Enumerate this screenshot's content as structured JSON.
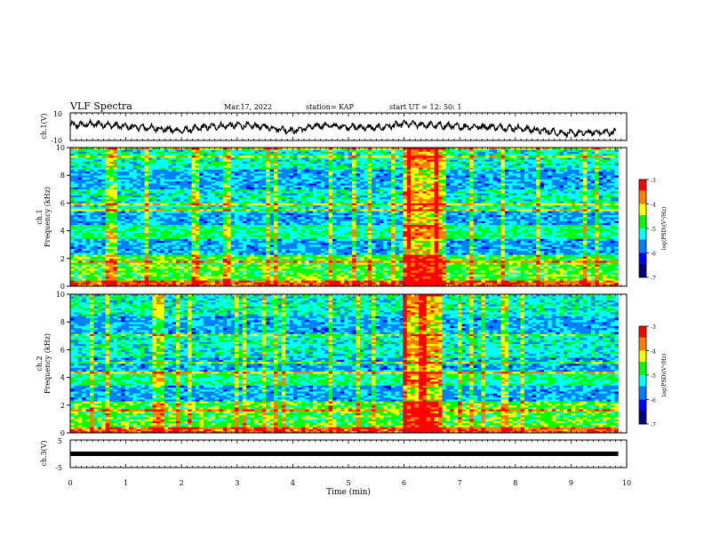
{
  "header": {
    "title": "VLF Spectra",
    "date": "Mar.17, 2022",
    "station": "station= KAP",
    "start": "start  UT =  12: 50: 1"
  },
  "colorbar": {
    "label": "log(PSD)(V²/Hz)",
    "ticks": [
      "-3",
      "-4",
      "-5",
      "-6",
      "-7"
    ],
    "colors": [
      "#ff0000",
      "#ff8000",
      "#ffff00",
      "#00ff00",
      "#00ffff",
      "#0080ff",
      "#0000ff",
      "#000080"
    ]
  },
  "chart_data": [
    {
      "type": "line",
      "ylabel": "ch.1(V)",
      "ylim": [
        -10,
        10
      ],
      "yticks": [
        "10",
        "-10"
      ],
      "xlim": [
        0,
        10
      ],
      "series": [
        {
          "x": [
            0,
            0.5,
            1,
            1.5,
            2,
            2.5,
            3,
            3.5,
            4,
            4.5,
            5,
            5.5,
            6,
            6.5,
            7,
            7.5,
            8,
            8.5,
            9,
            9.5,
            9.8
          ],
          "values": [
            1,
            2,
            0,
            -1,
            -3,
            0,
            1,
            0,
            -3,
            1,
            0,
            -1,
            2,
            1,
            0,
            0,
            -1,
            -3,
            -5,
            -4,
            -4
          ]
        }
      ]
    },
    {
      "type": "heatmap",
      "ylabel": "ch.1\nFrequency (kHz)",
      "ylim": [
        0,
        10
      ],
      "yticks": [
        "0",
        "2",
        "4",
        "6",
        "8",
        "10"
      ],
      "xlim": [
        0,
        10
      ],
      "data_end": 9.85,
      "zlim": [
        -7,
        -3
      ],
      "burst": [
        5.95,
        6.65
      ]
    },
    {
      "type": "heatmap",
      "ylabel": "ch.2\nFrequency (kHz)",
      "ylim": [
        0,
        10
      ],
      "yticks": [
        "0",
        "2",
        "4",
        "6",
        "8",
        "10"
      ],
      "xlim": [
        0,
        10
      ],
      "data_end": 9.85,
      "zlim": [
        -7,
        -3
      ],
      "burst": [
        5.95,
        6.65
      ]
    },
    {
      "type": "line",
      "ylabel": "ch.3(V)",
      "ylim": [
        -5,
        5
      ],
      "yticks": [
        "5",
        "-5"
      ],
      "xlim": [
        0,
        10
      ],
      "series": [
        {
          "x": [
            0,
            9.85
          ],
          "values": [
            0,
            0
          ]
        }
      ]
    }
  ],
  "xaxis": {
    "label": "Time (min)",
    "ticks": [
      "0",
      "1",
      "2",
      "3",
      "4",
      "5",
      "6",
      "7",
      "8",
      "9",
      "10"
    ]
  }
}
